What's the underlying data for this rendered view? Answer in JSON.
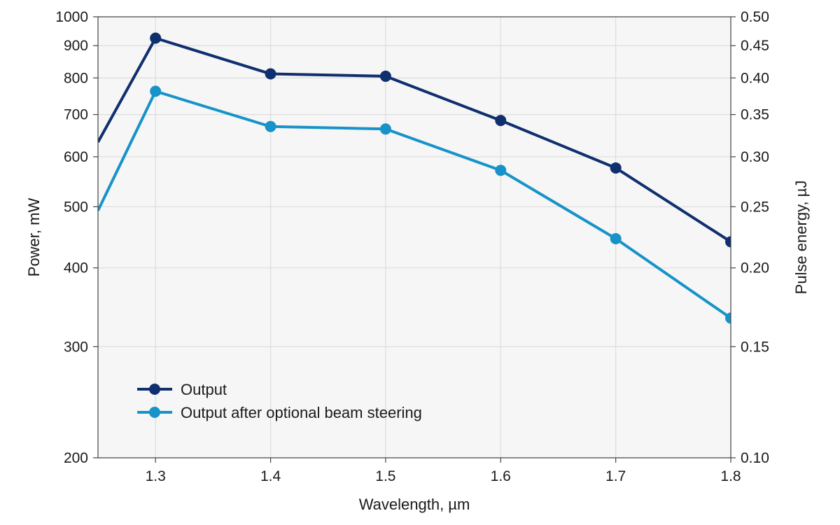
{
  "chart_data": {
    "type": "line",
    "xlabel": "Wavelength, µm",
    "ylabel": "Power, mW",
    "y2label": "Pulse energy, µJ",
    "xlim": [
      1.25,
      1.8
    ],
    "ylim": [
      200,
      1000
    ],
    "y2lim": [
      0.1,
      0.5
    ],
    "yscale": "log",
    "grid": true,
    "legend_position": "bottom-left",
    "x_ticks": [
      "1.3",
      "1.4",
      "1.5",
      "1.6",
      "1.7",
      "1.8"
    ],
    "y_ticks": [
      "200",
      "300",
      "400",
      "500",
      "600",
      "700",
      "800",
      "900",
      "1000"
    ],
    "y2_ticks": [
      "0.10",
      "0.15",
      "0.20",
      "0.25",
      "0.30",
      "0.35",
      "0.40",
      "0.45",
      "0.50"
    ],
    "series": [
      {
        "name": "Output",
        "color": "#0f2f6e",
        "x": [
          1.25,
          1.3,
          1.4,
          1.5,
          1.6,
          1.7,
          1.8
        ],
        "y": [
          633,
          925,
          812,
          805,
          685,
          576,
          440
        ],
        "markers": [
          false,
          true,
          true,
          true,
          true,
          true,
          true
        ]
      },
      {
        "name": "Output after optional beam steering",
        "color": "#1793c9",
        "x": [
          1.25,
          1.3,
          1.4,
          1.5,
          1.6,
          1.7,
          1.8
        ],
        "y": [
          493,
          762,
          670,
          664,
          571,
          445,
          333
        ],
        "markers": [
          false,
          true,
          true,
          true,
          true,
          true,
          true
        ]
      }
    ]
  }
}
